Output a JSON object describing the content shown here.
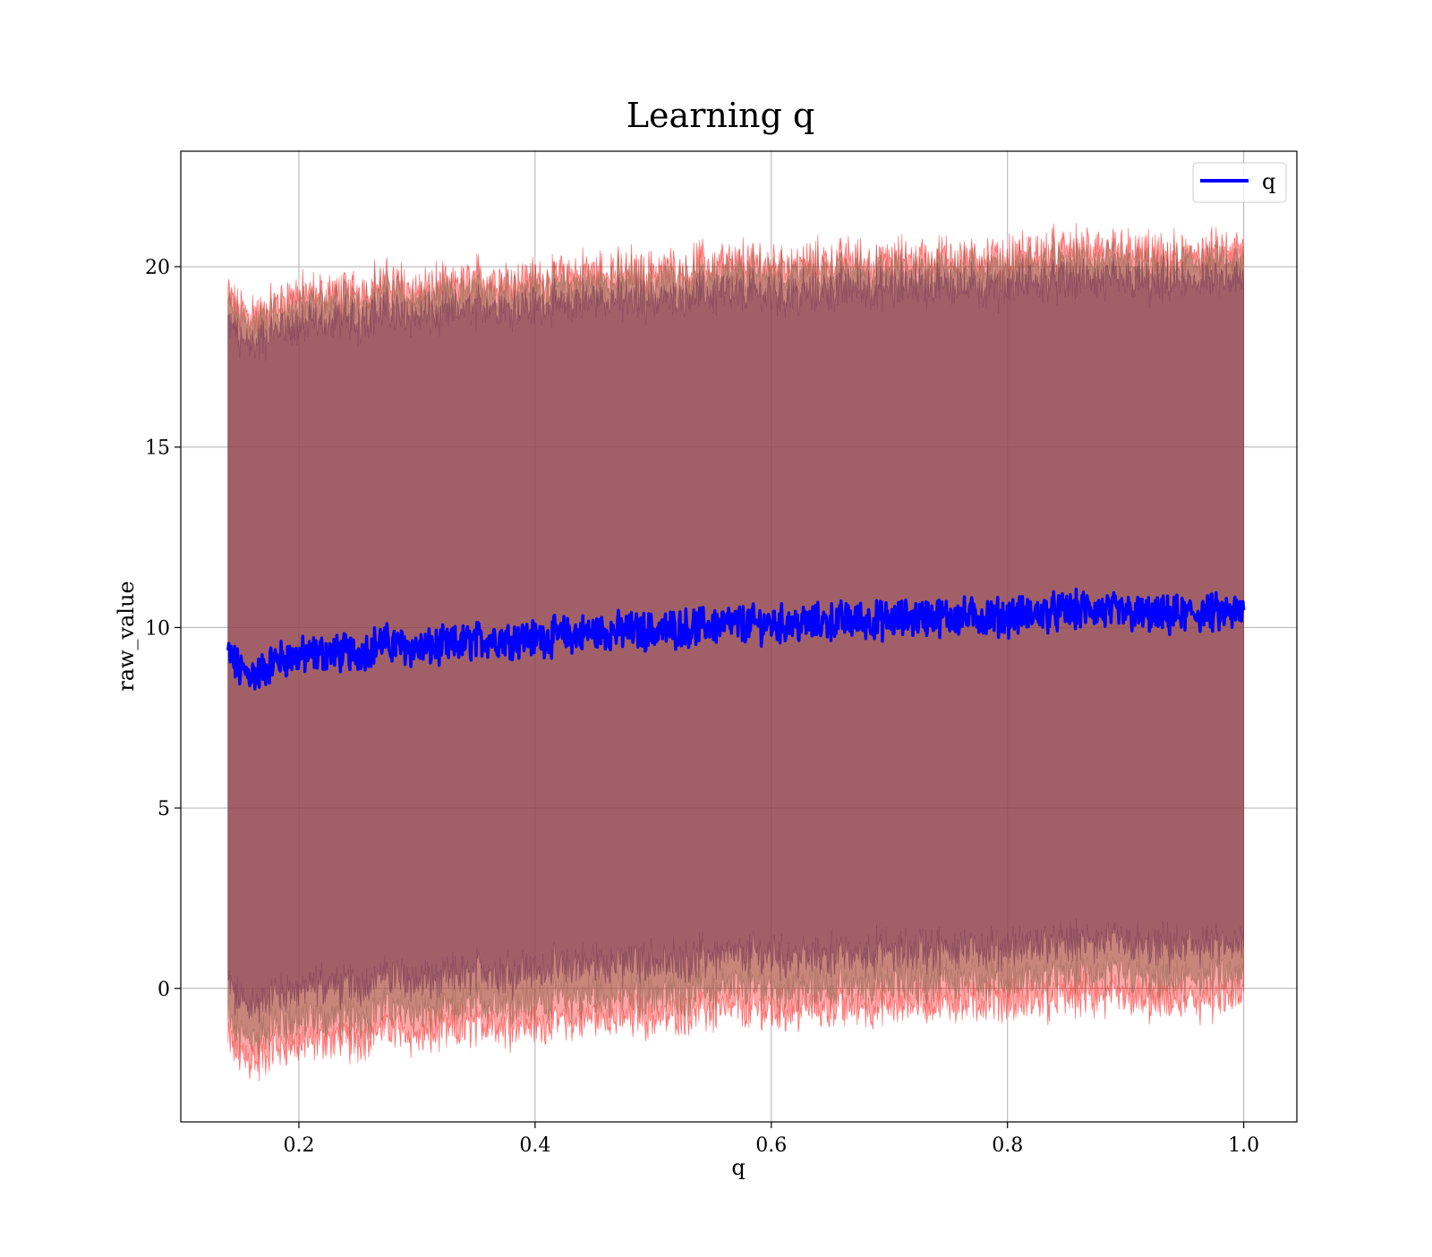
{
  "chart_data": {
    "type": "line",
    "title": "Learning q",
    "xlabel": "q",
    "ylabel": "raw_value",
    "xlim": [
      0.1,
      1.045
    ],
    "ylim": [
      -3.7,
      23.2
    ],
    "x_ticks": [
      {
        "value": 0.2,
        "label": "0.2"
      },
      {
        "value": 0.4,
        "label": "0.4"
      },
      {
        "value": 0.6,
        "label": "0.6"
      },
      {
        "value": 0.8,
        "label": "0.8"
      },
      {
        "value": 1.0,
        "label": "1.0"
      }
    ],
    "y_ticks": [
      {
        "value": 0,
        "label": "0"
      },
      {
        "value": 5,
        "label": "5"
      },
      {
        "value": 10,
        "label": "10"
      },
      {
        "value": 15,
        "label": "15"
      },
      {
        "value": 20,
        "label": "20"
      }
    ],
    "grid": true,
    "legend": {
      "position": "top-right"
    },
    "series": [
      {
        "name": "q",
        "color": "#0000ff",
        "x": [
          0.14,
          0.15,
          0.165,
          0.18,
          0.2,
          0.22,
          0.25,
          0.27,
          0.3,
          0.33,
          0.36,
          0.4,
          0.43,
          0.46,
          0.5,
          0.53,
          0.56,
          0.6,
          0.63,
          0.66,
          0.7,
          0.73,
          0.76,
          0.8,
          0.83,
          0.87,
          0.9,
          0.93,
          0.96,
          1.0
        ],
        "values": [
          9.3,
          8.8,
          8.7,
          9.1,
          9.2,
          9.3,
          9.3,
          9.6,
          9.4,
          9.5,
          9.7,
          9.7,
          9.8,
          9.9,
          9.9,
          10.0,
          10.1,
          10.1,
          10.1,
          10.2,
          10.2,
          10.3,
          10.3,
          10.3,
          10.4,
          10.5,
          10.4,
          10.3,
          10.4,
          10.4
        ]
      }
    ],
    "bands": [
      {
        "color": "#ff0000",
        "opacity": 0.35,
        "lower_offset": -10.7,
        "upper_offset": 10.0
      },
      {
        "color": "#9a6a55",
        "opacity": 0.55,
        "lower_offset": -10.1,
        "upper_offset": 9.7
      },
      {
        "color": "#7a3a55",
        "opacity": 0.5,
        "lower_offset": -9.2,
        "upper_offset": 9.2
      }
    ]
  }
}
